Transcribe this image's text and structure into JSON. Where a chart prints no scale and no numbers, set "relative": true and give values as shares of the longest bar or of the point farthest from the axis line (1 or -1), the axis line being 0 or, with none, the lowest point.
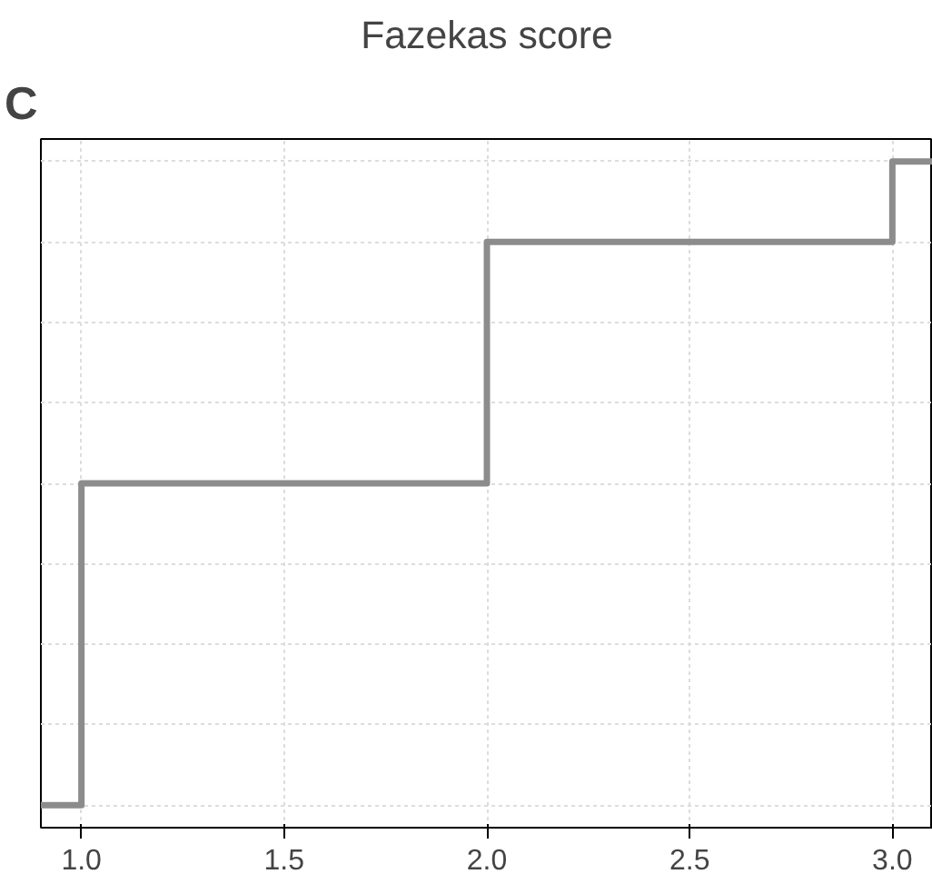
{
  "chart_data": {
    "type": "step",
    "title": "Fazekas score",
    "annotations": [
      "C"
    ],
    "x": [
      0.9,
      1.0,
      2.0,
      3.0,
      3.1
    ],
    "series": [
      {
        "color": "#8c8c8c",
        "values": [
          0,
          0.5,
          0.875,
          1,
          1
        ]
      }
    ],
    "relative": true,
    "xlim": [
      0.9,
      3.1
    ],
    "xticks": [
      {
        "value": 1.0,
        "label": "1.0"
      },
      1.5,
      {
        "value": 2.0,
        "label": "2.0"
      },
      2.5,
      {
        "value": 3.0,
        "label": "3.0"
      }
    ],
    "grid": true,
    "tick_labels": "x"
  }
}
